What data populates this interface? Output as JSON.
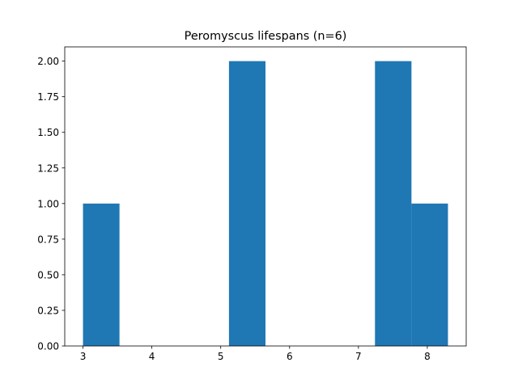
{
  "chart_data": {
    "type": "bar",
    "title": "Peromyscus lifespans (n=6)",
    "xlabel": "",
    "ylabel": "",
    "bins": [
      {
        "start": 3.0,
        "end": 3.53,
        "count": 1
      },
      {
        "start": 3.53,
        "end": 4.06,
        "count": 0
      },
      {
        "start": 4.06,
        "end": 4.59,
        "count": 0
      },
      {
        "start": 4.59,
        "end": 5.12,
        "count": 0
      },
      {
        "start": 5.12,
        "end": 5.65,
        "count": 2
      },
      {
        "start": 5.65,
        "end": 6.18,
        "count": 0
      },
      {
        "start": 6.18,
        "end": 6.71,
        "count": 0
      },
      {
        "start": 6.71,
        "end": 7.24,
        "count": 0
      },
      {
        "start": 7.24,
        "end": 7.77,
        "count": 2
      },
      {
        "start": 7.77,
        "end": 8.3,
        "count": 1
      }
    ],
    "xlim": [
      2.735,
      8.565
    ],
    "ylim": [
      0,
      2.1
    ],
    "xticks": [
      "3",
      "4",
      "5",
      "6",
      "7",
      "8"
    ],
    "xtick_values": [
      3,
      4,
      5,
      6,
      7,
      8
    ],
    "yticks": [
      "0.00",
      "0.25",
      "0.50",
      "0.75",
      "1.00",
      "1.25",
      "1.50",
      "1.75",
      "2.00"
    ],
    "ytick_values": [
      0,
      0.25,
      0.5,
      0.75,
      1.0,
      1.25,
      1.5,
      1.75,
      2.0
    ],
    "bar_color": "#1f77b4",
    "grid": false,
    "legend": "none"
  }
}
